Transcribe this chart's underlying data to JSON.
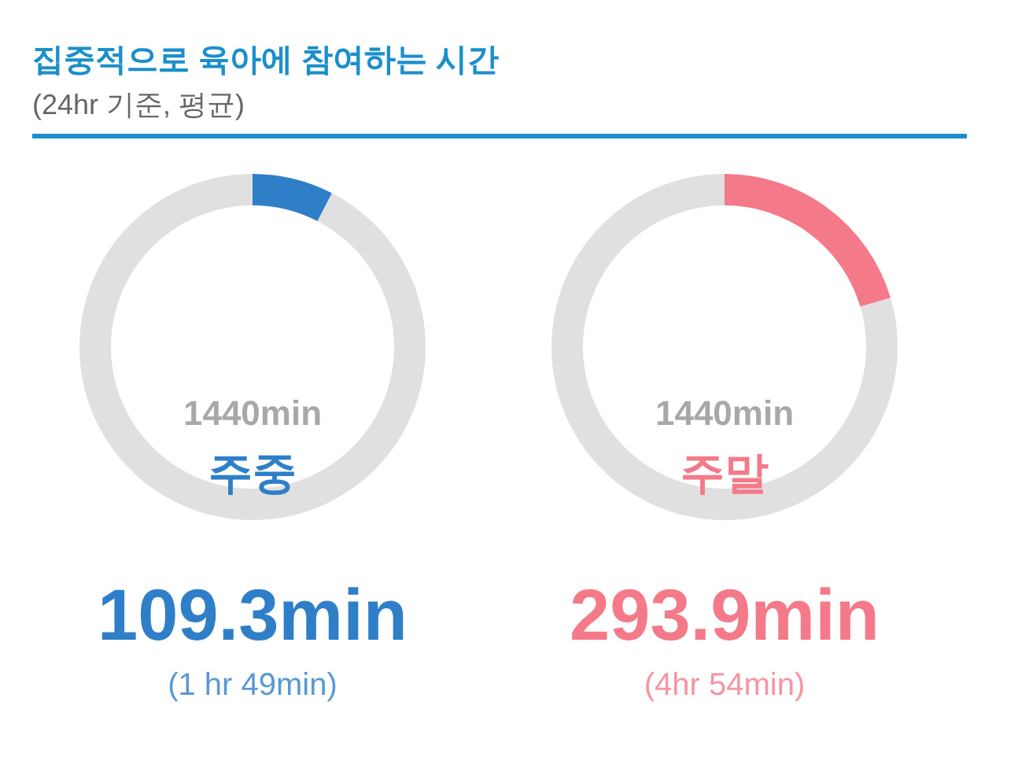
{
  "chart_data": [
    {
      "type": "donut",
      "title": "집중적으로 육아에 참여하는 시간",
      "subtitle": "(24hr 기준, 평균)",
      "categories": [
        null,
        null
      ],
      "values": [
        7.59,
        92.41
      ],
      "colors": [
        "#2f7fc8",
        "#e0e0e0"
      ],
      "annotations": [
        "1440min",
        "주중",
        "109.3min",
        "(1 hr 49min)"
      ]
    },
    {
      "type": "donut",
      "categories": [
        null,
        null
      ],
      "values": [
        20.41,
        79.59
      ],
      "colors": [
        "#f47a8a",
        "#e0e0e0"
      ],
      "annotations": [
        "1440min",
        "주말",
        "293.9min",
        "(4hr 54min)"
      ]
    }
  ]
}
